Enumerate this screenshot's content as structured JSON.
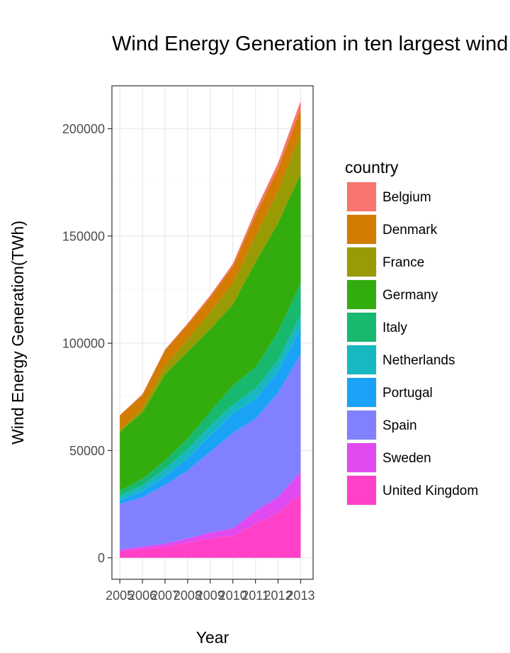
{
  "chart_data": {
    "type": "area",
    "stacked": true,
    "title": "Wind Energy Generation in ten largest wind energy producers in Europe",
    "xlabel": "Year",
    "ylabel": "Wind Energy Generation(TWh)",
    "x": [
      2005,
      2006,
      2007,
      2008,
      2009,
      2010,
      2011,
      2012,
      2013
    ],
    "x_tick_labels": [
      "2005",
      "2006",
      "2007",
      "2008",
      "2009",
      "2010",
      "2011",
      "2012",
      "2013"
    ],
    "ylim": [
      -10000,
      220000
    ],
    "y_ticks": [
      0,
      50000,
      100000,
      150000,
      200000
    ],
    "y_tick_labels": [
      "0",
      "50000",
      "100000",
      "150000",
      "200000"
    ],
    "grid": true,
    "panel_border": true,
    "legend_title": "country",
    "legend_position": "right",
    "series": [
      {
        "name": "United Kingdom",
        "color": "#FF41C9",
        "values": [
          3000,
          4200,
          5200,
          7000,
          9300,
          10200,
          15800,
          21000,
          30000
        ]
      },
      {
        "name": "Sweden",
        "color": "#E14AF0",
        "values": [
          900,
          1000,
          1400,
          2000,
          2500,
          3500,
          6100,
          7200,
          10000
        ]
      },
      {
        "name": "Spain",
        "color": "#8181FF",
        "values": [
          21200,
          23000,
          27400,
          31700,
          37700,
          44500,
          42900,
          48800,
          55000
        ]
      },
      {
        "name": "Portugal",
        "color": "#1AA3F6",
        "values": [
          1700,
          2900,
          4000,
          5700,
          7500,
          9000,
          9000,
          10000,
          12000
        ]
      },
      {
        "name": "Netherlands",
        "color": "#18B8C1",
        "values": [
          2100,
          2700,
          3400,
          4200,
          4600,
          4000,
          5100,
          5000,
          6000
        ]
      },
      {
        "name": "Italy",
        "color": "#18B86F",
        "values": [
          2300,
          3000,
          4000,
          4900,
          6500,
          9100,
          9900,
          13400,
          15000
        ]
      },
      {
        "name": "Germany",
        "color": "#33AC0E",
        "values": [
          27500,
          30900,
          40000,
          40600,
          38600,
          37800,
          49000,
          50600,
          51000
        ]
      },
      {
        "name": "France",
        "color": "#999B05",
        "values": [
          1000,
          2100,
          4000,
          5700,
          7900,
          9900,
          12000,
          15000,
          19000
        ]
      },
      {
        "name": "Denmark",
        "color": "#D27C00",
        "values": [
          6600,
          6100,
          7200,
          6900,
          6700,
          7800,
          9800,
          10300,
          11000
        ]
      },
      {
        "name": "Belgium",
        "color": "#F8766D",
        "values": [
          200,
          400,
          500,
          600,
          1000,
          1300,
          2300,
          2700,
          4000
        ]
      }
    ],
    "legend_order": [
      "Belgium",
      "Denmark",
      "France",
      "Germany",
      "Italy",
      "Netherlands",
      "Portugal",
      "Spain",
      "Sweden",
      "United Kingdom"
    ]
  }
}
